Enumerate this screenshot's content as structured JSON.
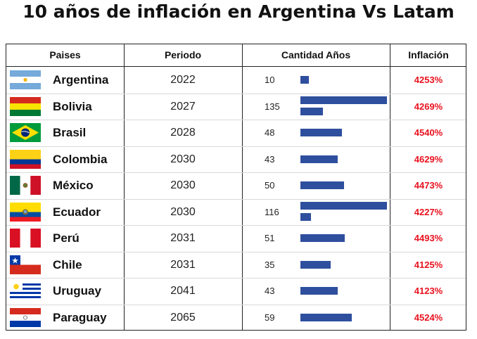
{
  "title": "10 años de inflación en Argentina Vs Latam",
  "headers": {
    "paises": "Paises",
    "periodo": "Periodo",
    "cantidad": "Cantidad Años",
    "inflacion": "Inflación"
  },
  "colors": {
    "bar": "#2e4f9e",
    "inflation_text": "#e8111e"
  },
  "chart_data": {
    "type": "table",
    "title": "10 años de inflación en Argentina Vs Latam",
    "bar_scale_max": 135,
    "columns": [
      "Paises",
      "Periodo",
      "Cantidad Años",
      "Inflación"
    ],
    "rows": [
      {
        "country": "Argentina",
        "flag": "argentina-flag-icon",
        "period": "2022",
        "years": 10,
        "years_label": "10",
        "inflation": "4253%"
      },
      {
        "country": "Bolivia",
        "flag": "bolivia-flag-icon",
        "period": "2027",
        "years": 135,
        "years_label": "135",
        "inflation": "4269%"
      },
      {
        "country": "Brasil",
        "flag": "brazil-flag-icon",
        "period": "2028",
        "years": 48,
        "years_label": "48",
        "inflation": "4540%"
      },
      {
        "country": "Colombia",
        "flag": "colombia-flag-icon",
        "period": "2030",
        "years": 43,
        "years_label": "43",
        "inflation": "4629%"
      },
      {
        "country": "México",
        "flag": "mexico-flag-icon",
        "period": "2030",
        "years": 50,
        "years_label": "50",
        "inflation": "4473%"
      },
      {
        "country": "Ecuador",
        "flag": "ecuador-flag-icon",
        "period": "2030",
        "years": 116,
        "years_label": "116",
        "inflation": "4227%"
      },
      {
        "country": "Perú",
        "flag": "peru-flag-icon",
        "period": "2031",
        "years": 51,
        "years_label": "51",
        "inflation": "4493%"
      },
      {
        "country": "Chile",
        "flag": "chile-flag-icon",
        "period": "2031",
        "years": 35,
        "years_label": "35",
        "inflation": "4125%"
      },
      {
        "country": "Uruguay",
        "flag": "uruguay-flag-icon",
        "period": "2041",
        "years": 43,
        "years_label": "43",
        "inflation": "4123%"
      },
      {
        "country": "Paraguay",
        "flag": "paraguay-flag-icon",
        "period": "2065",
        "years": 59,
        "years_label": "59",
        "inflation": "4524%"
      }
    ]
  }
}
